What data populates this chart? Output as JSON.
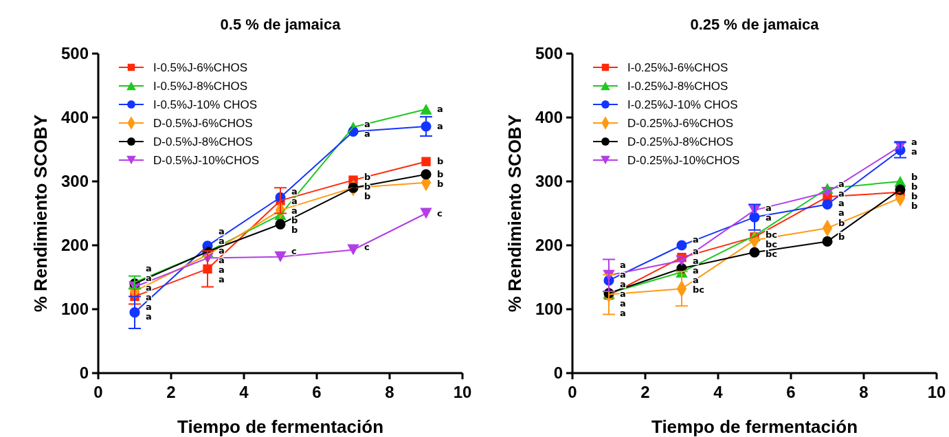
{
  "chart_data": [
    {
      "type": "line",
      "title": "0.5 % de jamaica",
      "xlabel": "Tiempo de fermentación",
      "ylabel": "% Rendimiento SCOBY",
      "x": [
        1,
        3,
        5,
        7,
        9
      ],
      "xlim": [
        0,
        10
      ],
      "xticks": [
        0,
        2,
        4,
        6,
        8,
        10
      ],
      "ylim": [
        0,
        500
      ],
      "yticks": [
        0,
        100,
        200,
        300,
        400,
        500
      ],
      "legend": "top left",
      "grid": false,
      "line_style": "solid",
      "series": [
        {
          "name": "I-0.5%J-6%CHOS",
          "color": "#ff2a0a",
          "marker": "square",
          "values": [
            120,
            163,
            270,
            302,
            331
          ],
          "errors": [
            12,
            28,
            20,
            null,
            null
          ],
          "value_labels": [
            "a",
            "a",
            "a",
            "b",
            "b"
          ]
        },
        {
          "name": "I-0.5%J-8%CHOS",
          "color": "#1ec81e",
          "marker": "triangle",
          "values": [
            142,
            190,
            248,
            385,
            413
          ],
          "errors": [
            10,
            null,
            null,
            null,
            null
          ],
          "value_labels": [
            "a",
            "a",
            "b",
            "a",
            "a"
          ]
        },
        {
          "name": "I-0.5%J-10% CHOS",
          "color": "#1434ff",
          "marker": "circle",
          "values": [
            95,
            199,
            275,
            378,
            386
          ],
          "errors": [
            25,
            null,
            null,
            null,
            15
          ],
          "value_labels": [
            "a",
            "a",
            "a",
            "a",
            "a"
          ]
        },
        {
          "name": "D-0.5%J-6%CHOS",
          "color": "#ff9a14",
          "marker": "diamond",
          "values": [
            128,
            185,
            255,
            290,
            298
          ],
          "value_labels": [
            "a",
            "a",
            "a",
            "b",
            "b"
          ]
        },
        {
          "name": "D-0.5%J-8%CHOS",
          "color": "#000000",
          "marker": "circle",
          "values": [
            140,
            190,
            233,
            290,
            311
          ],
          "value_labels": [
            "a",
            "a",
            "b",
            "b",
            "b"
          ]
        },
        {
          "name": "D-0.5%J-10%CHOS",
          "color": "#b43ee6",
          "marker": "triangle-down",
          "values": [
            135,
            180,
            182,
            193,
            250
          ],
          "value_labels": [
            "a",
            "a",
            "c",
            "c",
            "c"
          ]
        }
      ]
    },
    {
      "type": "line",
      "title": "0.25 % de jamaica",
      "xlabel": "Tiempo de fermentación",
      "ylabel": "% Rendimiento SCOBY",
      "x": [
        1,
        3,
        5,
        7,
        9
      ],
      "xlim": [
        0,
        10
      ],
      "xticks": [
        0,
        2,
        4,
        6,
        8,
        10
      ],
      "ylim": [
        0,
        500
      ],
      "yticks": [
        0,
        100,
        200,
        300,
        400,
        500
      ],
      "legend": "top left",
      "grid": false,
      "line_style": "solid",
      "series": [
        {
          "name": "I-0.25%J-6%CHOS",
          "color": "#ff2a0a",
          "marker": "square",
          "values": [
            122,
            181,
            213,
            276,
            283
          ],
          "value_labels": [
            "a",
            "a",
            "bc",
            "a",
            "b"
          ]
        },
        {
          "name": "I-0.25%J-8%CHOS",
          "color": "#1ec81e",
          "marker": "triangle",
          "values": [
            125,
            158,
            215,
            289,
            300
          ],
          "value_labels": [
            "a",
            "a",
            null,
            "a",
            "b"
          ]
        },
        {
          "name": "I-0.25%J-10% CHOS",
          "color": "#1434ff",
          "marker": "circle",
          "values": [
            145,
            200,
            244,
            264,
            349
          ],
          "errors": [
            null,
            null,
            20,
            null,
            12
          ],
          "value_labels": [
            "a",
            "a",
            "a",
            "a",
            "a"
          ]
        },
        {
          "name": "D-0.25%J-6%CHOS",
          "color": "#ff9a14",
          "marker": "diamond",
          "values": [
            123,
            132,
            208,
            227,
            274
          ],
          "errors": [
            31,
            27,
            null,
            null,
            null
          ],
          "value_labels": [
            "a",
            "bc",
            "bc",
            "b",
            "b"
          ]
        },
        {
          "name": "D-0.25%J-8%CHOS",
          "color": "#000000",
          "marker": "circle",
          "values": [
            125,
            164,
            189,
            206,
            287
          ],
          "value_labels": [
            "a",
            "a",
            "bc",
            "b",
            "b"
          ]
        },
        {
          "name": "D-0.25%J-10%CHOS",
          "color": "#b43ee6",
          "marker": "triangle-down",
          "values": [
            153,
            176,
            255,
            283,
            355
          ],
          "errors": [
            25,
            null,
            null,
            null,
            null
          ],
          "value_labels": [
            "a",
            "a",
            "a",
            "a",
            "a"
          ]
        }
      ]
    }
  ]
}
